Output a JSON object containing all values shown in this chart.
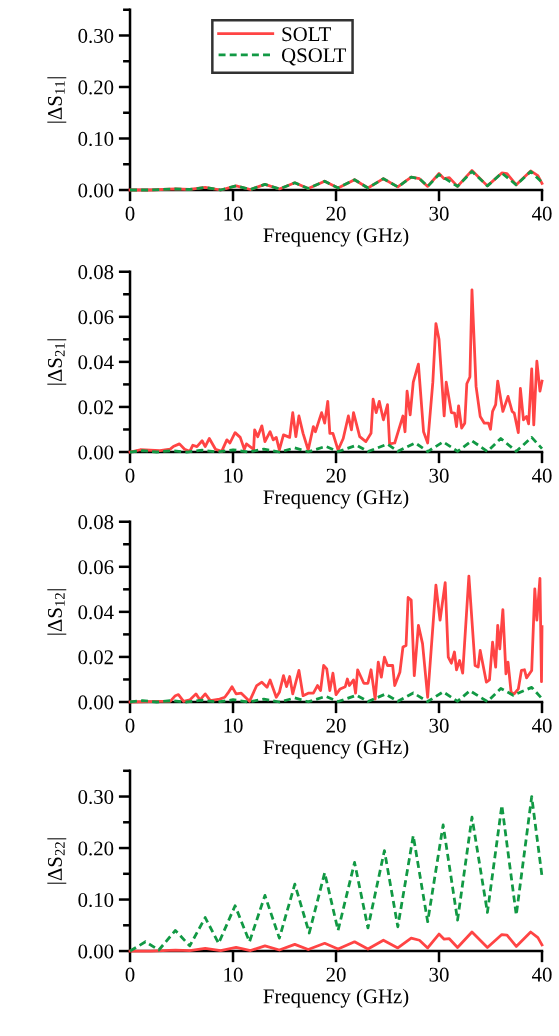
{
  "chart_data": [
    {
      "type": "line",
      "xlabel": "Frequency (GHz)",
      "ylabel": "|ΔS$_{11}$|",
      "xlim": [
        0,
        40
      ],
      "xticks": [
        0,
        10,
        20,
        30,
        40
      ],
      "ylim": [
        0,
        0.35
      ],
      "yticks": [
        {
          "value": 0,
          "label": "0.00"
        },
        {
          "value": 0.1,
          "label": "0.10"
        },
        {
          "value": 0.2,
          "label": "0.20"
        },
        {
          "value": 0.3,
          "label": "0.30"
        }
      ],
      "legend": "top",
      "grid": false,
      "series": [
        {
          "name": "SOLT",
          "color": "#ff4444",
          "line_style": "solid",
          "x": [
            0,
            2,
            4.4,
            5.8,
            7.3,
            8.8,
            10.3,
            11.7,
            13.1,
            14.5,
            16,
            17.3,
            18.9,
            20.2,
            21.8,
            23.1,
            24.6,
            26,
            27.3,
            28.1,
            28.9,
            30,
            30.5,
            31,
            31.8,
            33.2,
            34.7,
            36.1,
            36.6,
            37.5,
            38.9,
            39.6,
            40
          ],
          "values": [
            0,
            0,
            0.002,
            0.001,
            0.005,
            0,
            0.008,
            0.001,
            0.011,
            0.002,
            0.014,
            0.003,
            0.017,
            0.004,
            0.02,
            0.004,
            0.022,
            0.006,
            0.025,
            0.022,
            0.007,
            0.032,
            0.022,
            0.024,
            0.007,
            0.038,
            0.008,
            0.033,
            0.032,
            0.01,
            0.037,
            0.028,
            0.013
          ]
        },
        {
          "name": "QSOLT",
          "color": "#119944",
          "line_style": "dashed",
          "x": [
            0,
            2,
            4.4,
            5.8,
            7.3,
            8.8,
            10.3,
            11.7,
            13.1,
            14.5,
            16,
            17.3,
            18.9,
            20.2,
            21.8,
            23.1,
            24.6,
            26,
            27.3,
            28.1,
            28.9,
            30,
            31.8,
            33.2,
            34.7,
            36.1,
            37.5,
            38.9,
            40
          ],
          "values": [
            0,
            0,
            0.002,
            0.001,
            0.005,
            0,
            0.008,
            0.001,
            0.011,
            0.002,
            0.014,
            0.003,
            0.017,
            0.004,
            0.02,
            0.004,
            0.022,
            0.006,
            0.025,
            0.022,
            0.007,
            0.03,
            0.007,
            0.036,
            0.008,
            0.033,
            0.01,
            0.036,
            0.015
          ]
        }
      ]
    },
    {
      "type": "line",
      "xlabel": "Frequency (GHz)",
      "ylabel": "|ΔS$_{21}$|",
      "xlim": [
        0,
        40
      ],
      "xticks": [
        0,
        10,
        20,
        30,
        40
      ],
      "ylim": [
        0,
        0.08
      ],
      "yticks": [
        {
          "value": 0,
          "label": "0.00"
        },
        0.02,
        0.04,
        0.06,
        0.08
      ],
      "grid": false,
      "series": [
        {
          "color": "#ff4444",
          "line_style": "solid",
          "x": [
            0,
            1.0,
            2.9,
            3.9,
            4.2,
            4.8,
            5.3,
            5.8,
            6.1,
            6.5,
            7.0,
            7.3,
            7.7,
            8.3,
            8.9,
            9.4,
            9.7,
            10.2,
            10.7,
            11.1,
            11.3,
            12.0,
            12.1,
            12.4,
            12.8,
            13.1,
            13.6,
            13.9,
            14.2,
            14.5,
            14.9,
            15.5,
            15.8,
            16.1,
            16.4,
            16.8,
            17.3,
            17.8,
            18.0,
            18.6,
            18.9,
            19.2,
            19.4,
            19.7,
            20.2,
            20.7,
            21.2,
            21.5,
            21.7,
            22.3,
            22.9,
            23.4,
            23.6,
            23.9,
            24.2,
            24.6,
            25.0,
            25.2,
            25.7,
            26.5,
            26.7,
            26.9,
            27.2,
            27.5,
            28.0,
            28.5,
            28.9,
            29.4,
            29.7,
            30.0,
            30.5,
            30.7,
            31.2,
            31.5,
            31.7,
            31.9,
            32.2,
            32.5,
            32.7,
            33.0,
            33.2,
            33.6,
            34.0,
            34.4,
            34.8,
            35.0,
            35.2,
            35.5,
            35.7,
            36.2,
            36.7,
            37.1,
            37.3,
            37.7,
            37.9,
            38.2,
            38.5,
            38.7,
            39.0,
            39.2,
            39.5,
            39.8,
            40
          ],
          "values": [
            0,
            0.001,
            0.0006,
            0.0013,
            0.0024,
            0.0036,
            0.0012,
            0.0003,
            0.003,
            0.0024,
            0.005,
            0.0024,
            0.006,
            0.0012,
            0.0003,
            0.0054,
            0.004,
            0.0086,
            0.0065,
            0.0012,
            0.0036,
            0.0012,
            0.0098,
            0.0068,
            0.0116,
            0.0046,
            0.009,
            0.0054,
            0.0065,
            0.0009,
            0.0076,
            0.0065,
            0.0175,
            0.0068,
            0.016,
            0.0083,
            0.0009,
            0.0113,
            0.009,
            0.0175,
            0.0128,
            0.0225,
            0.0083,
            0.0083,
            0.0009,
            0.006,
            0.016,
            0.0098,
            0.0175,
            0.0068,
            0.0046,
            0.0083,
            0.0235,
            0.0175,
            0.0225,
            0.0143,
            0.021,
            0.0036,
            0.004,
            0.016,
            0.009,
            0.027,
            0.0165,
            0.031,
            0.039,
            0.009,
            0.004,
            0.031,
            0.057,
            0.05,
            0.016,
            0.031,
            0.0175,
            0.0173,
            0.0113,
            0.0205,
            0.0106,
            0.0128,
            0.0303,
            0.0333,
            0.072,
            0.029,
            0.0158,
            0.0128,
            0.0128,
            0.0101,
            0.018,
            0.021,
            0.0315,
            0.018,
            0.0247,
            0.018,
            0.0173,
            0.0086,
            0.0282,
            0.0143,
            0.0158,
            0.0125,
            0.0369,
            0.012,
            0.0403,
            0.027,
            0.0315
          ]
        },
        {
          "color": "#119944",
          "line_style": "dashed",
          "x": [
            0,
            1.2,
            2.6,
            4,
            5.5,
            7,
            8.5,
            10,
            11.5,
            13,
            14.5,
            16,
            17.3,
            19,
            20.2,
            22,
            23.1,
            25,
            26,
            27.7,
            28.9,
            30.4,
            31.8,
            33.2,
            34.7,
            36,
            37.5,
            39,
            40
          ],
          "values": [
            0,
            0.0006,
            0,
            0.0006,
            0,
            0.0008,
            0,
            0.001,
            0,
            0.0013,
            0,
            0.0018,
            0.0001,
            0.0025,
            0.0002,
            0.003,
            0.0002,
            0.0035,
            0.0003,
            0.004,
            0.0002,
            0.0045,
            0.0003,
            0.005,
            0.0002,
            0.006,
            0.0003,
            0.0065,
            0.0015
          ]
        }
      ]
    },
    {
      "type": "line",
      "xlabel": "Frequency (GHz)",
      "ylabel": "|ΔS$_{12}$|",
      "xlim": [
        0,
        40
      ],
      "xticks": [
        0,
        10,
        20,
        30,
        40
      ],
      "ylim": [
        0,
        0.08
      ],
      "yticks": [
        {
          "value": 0,
          "label": "0.00"
        },
        0.02,
        0.04,
        0.06,
        0.08
      ],
      "grid": false,
      "series": [
        {
          "color": "#ff4444",
          "line_style": "solid",
          "x": [
            0,
            2.9,
            3.9,
            4.4,
            4.7,
            5.2,
            5.8,
            6.4,
            6.8,
            7.3,
            7.8,
            8.7,
            9.2,
            9.5,
            9.9,
            10.3,
            10.8,
            11.6,
            12.3,
            12.8,
            13.3,
            13.6,
            14.2,
            14.5,
            14.9,
            15.2,
            15.5,
            15.8,
            16.4,
            16.8,
            17.3,
            17.8,
            18.2,
            18.5,
            18.8,
            19.1,
            19.4,
            19.7,
            20.0,
            20.4,
            20.9,
            21.1,
            21.3,
            21.7,
            21.9,
            22.1,
            22.7,
            23.1,
            23.4,
            23.8,
            24.1,
            24.4,
            24.7,
            25.0,
            25.5,
            25.7,
            26.2,
            26.5,
            26.8,
            27.0,
            27.3,
            27.6,
            28.0,
            28.4,
            28.9,
            29.7,
            30.1,
            30.6,
            30.9,
            31.2,
            31.5,
            31.7,
            32.0,
            32.3,
            32.9,
            33.5,
            33.8,
            34.0,
            34.6,
            34.9,
            35.2,
            35.5,
            35.7,
            35.9,
            36.2,
            36.5,
            36.7,
            37.0,
            37.3,
            37.7,
            38.0,
            38.3,
            38.5,
            39.0,
            39.3,
            39.5,
            39.8,
            39.95,
            40
          ],
          "values": [
            0,
            0.0003,
            0.0003,
            0.0028,
            0.0033,
            0.0003,
            0.0009,
            0.0036,
            0.0009,
            0.0036,
            0.0006,
            0.0013,
            0.0021,
            0.0039,
            0.0068,
            0.0036,
            0.0039,
            0.0003,
            0.0073,
            0.0088,
            0.0065,
            0.0098,
            0.0021,
            0.0043,
            0.0117,
            0.0068,
            0.0113,
            0.0036,
            0.014,
            0.0028,
            0.0039,
            0.0039,
            0.0073,
            0.0051,
            0.0162,
            0.0147,
            0.0051,
            0.0128,
            0.0033,
            0.0058,
            0.0068,
            0.0102,
            0.0073,
            0.0098,
            0.0039,
            0.0143,
            0.0083,
            0.0083,
            0.0143,
            0.0013,
            0.0177,
            0.011,
            0.0199,
            0.0162,
            0.0162,
            0.0073,
            0.0132,
            0.0244,
            0.0251,
            0.0464,
            0.0452,
            0.0117,
            0.034,
            0.0259,
            0.0021,
            0.0519,
            0.0363,
            0.053,
            0.0199,
            0.0172,
            0.0222,
            0.0143,
            0.0184,
            0.0128,
            0.0559,
            0.0162,
            0.0155,
            0.0229,
            0.0088,
            0.0098,
            0.0266,
            0.0155,
            0.034,
            0.0236,
            0.041,
            0.0125,
            0.0177,
            0.0043,
            0.0036,
            0.0058,
            0.014,
            0.0143,
            0.0107,
            0.014,
            0.0502,
            0.0363,
            0.0549,
            0.009,
            0.0335
          ]
        },
        {
          "color": "#119944",
          "line_style": "dashed",
          "x": [
            0,
            1.2,
            2.6,
            4,
            5.5,
            7,
            8.5,
            10,
            11.5,
            13,
            14.5,
            16,
            17.3,
            19,
            20.2,
            22,
            23.1,
            24.8,
            26,
            27.5,
            28.9,
            30.4,
            31.8,
            33,
            34.7,
            36,
            37.2,
            39,
            40
          ],
          "values": [
            0,
            0.0006,
            0,
            0.0006,
            0,
            0.0008,
            0,
            0.001,
            0,
            0.0013,
            0,
            0.0018,
            0.0001,
            0.0025,
            0.0002,
            0.003,
            0.0002,
            0.0035,
            0.0003,
            0.004,
            0.0002,
            0.0045,
            0.0003,
            0.005,
            0.0002,
            0.006,
            0.003,
            0.0065,
            0.0015
          ]
        }
      ]
    },
    {
      "type": "line",
      "xlabel": "Frequency (GHz)",
      "ylabel": "|ΔS$_{22}$|",
      "xlim": [
        0,
        40
      ],
      "xticks": [
        0,
        10,
        20,
        30,
        40
      ],
      "ylim": [
        0,
        0.35
      ],
      "yticks": [
        {
          "value": 0,
          "label": "0.00"
        },
        {
          "value": 0.1,
          "label": "0.10"
        },
        {
          "value": 0.2,
          "label": "0.20"
        },
        {
          "value": 0.3,
          "label": "0.30"
        }
      ],
      "grid": false,
      "series": [
        {
          "color": "#ff4444",
          "line_style": "solid",
          "x": [
            0,
            2,
            4.4,
            5.8,
            7.3,
            8.8,
            10.3,
            11.7,
            13.1,
            14.5,
            16,
            17.3,
            18.9,
            20.2,
            21.8,
            23.1,
            24.6,
            26,
            27.3,
            28.1,
            28.9,
            30,
            30.5,
            31,
            31.8,
            33.2,
            34.7,
            36.1,
            36.6,
            37.5,
            38.9,
            39.6,
            40
          ],
          "values": [
            0,
            0,
            0.002,
            0.001,
            0.005,
            0.001,
            0.007,
            0.001,
            0.01,
            0.002,
            0.013,
            0.003,
            0.015,
            0.004,
            0.018,
            0.004,
            0.021,
            0.006,
            0.025,
            0.021,
            0.006,
            0.033,
            0.023,
            0.024,
            0.007,
            0.037,
            0.007,
            0.032,
            0.031,
            0.009,
            0.037,
            0.026,
            0.012
          ]
        },
        {
          "color": "#119944",
          "line_style": "dashed",
          "x": [
            0,
            1.5,
            2.8,
            4.4,
            5.8,
            7.3,
            8.6,
            10.2,
            11.6,
            13.1,
            14.5,
            16,
            17.4,
            18.9,
            20.2,
            21.8,
            23.1,
            24.7,
            26,
            27.5,
            28.9,
            30.4,
            31.8,
            33.2,
            34.7,
            36.1,
            37.5,
            39,
            40
          ],
          "values": [
            0,
            0.018,
            0.002,
            0.04,
            0.01,
            0.065,
            0.015,
            0.088,
            0.018,
            0.108,
            0.025,
            0.13,
            0.035,
            0.152,
            0.04,
            0.172,
            0.045,
            0.195,
            0.047,
            0.224,
            0.057,
            0.245,
            0.06,
            0.26,
            0.075,
            0.283,
            0.07,
            0.3,
            0.145
          ]
        }
      ]
    }
  ]
}
